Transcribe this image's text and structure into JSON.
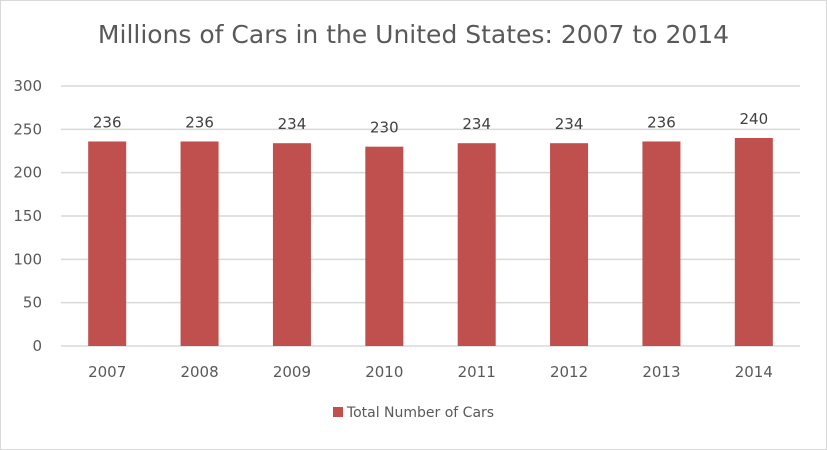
{
  "chart_data": {
    "type": "bar",
    "title": "Millions of Cars in the United States: 2007 to 2014",
    "categories": [
      "2007",
      "2008",
      "2009",
      "2010",
      "2011",
      "2012",
      "2013",
      "2014"
    ],
    "series": [
      {
        "name": "Total Number of Cars",
        "values": [
          236,
          236,
          234,
          230,
          234,
          234,
          236,
          240
        ],
        "color": "#c0504d"
      }
    ],
    "xlabel": "",
    "ylabel": "",
    "ylim": [
      0,
      300
    ],
    "yticks": [
      0,
      50,
      100,
      150,
      200,
      250,
      300
    ],
    "grid": true,
    "legend": "bottom"
  }
}
